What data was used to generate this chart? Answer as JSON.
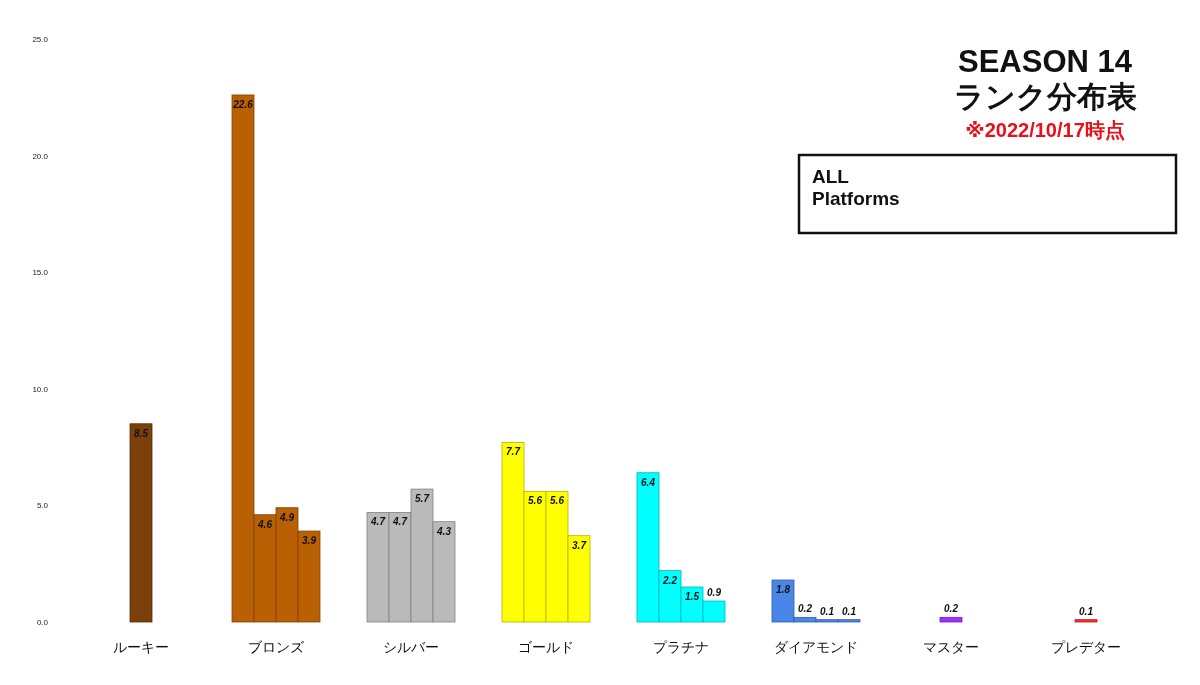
{
  "chart_data": {
    "type": "bar",
    "title": "SEASON 14",
    "subtitle": "ランク分布表",
    "annotations": [
      "※2022/10/17時点",
      "ALL Platforms"
    ],
    "categories": [
      "ルーキー",
      "ブロンズ",
      "シルバー",
      "ゴールド",
      "プラチナ",
      "ダイアモンド",
      "マスター",
      "プレデター"
    ],
    "series": [
      {
        "colors": [
          "#7b3f0a",
          "#b95f04",
          "#bababa",
          "#ffff00",
          "#00ffff",
          "#4a86e8",
          "#9b30ff",
          "#ff2a2a"
        ],
        "values": [
          8.5,
          22.6,
          4.7,
          7.7,
          6.4,
          1.8,
          0.2,
          0.1
        ]
      },
      {
        "colors": [
          null,
          "#b95f04",
          "#bababa",
          "#ffff00",
          "#00ffff",
          "#4a86e8",
          null,
          null
        ],
        "values": [
          null,
          4.6,
          4.7,
          5.6,
          2.2,
          0.2,
          null,
          null
        ]
      },
      {
        "colors": [
          null,
          "#b95f04",
          "#bababa",
          "#ffff00",
          "#00ffff",
          "#4a86e8",
          null,
          null
        ],
        "values": [
          null,
          4.9,
          5.7,
          5.6,
          1.5,
          0.1,
          null,
          null
        ]
      },
      {
        "colors": [
          null,
          "#b95f04",
          "#bababa",
          "#ffff00",
          "#00ffff",
          "#4a86e8",
          null,
          null
        ],
        "values": [
          null,
          3.9,
          4.3,
          3.7,
          0.9,
          0.1,
          null,
          null
        ]
      }
    ],
    "ylim": [
      0,
      25
    ],
    "yticks": [
      {
        "value": 0,
        "label": "0.0"
      },
      {
        "value": 5,
        "label": "5.0"
      },
      {
        "value": 10,
        "label": "10.0"
      },
      {
        "value": 15,
        "label": "15.0"
      },
      {
        "value": 20,
        "label": "20.0"
      },
      {
        "value": 25,
        "label": "25.0"
      }
    ],
    "data_labels": true
  }
}
